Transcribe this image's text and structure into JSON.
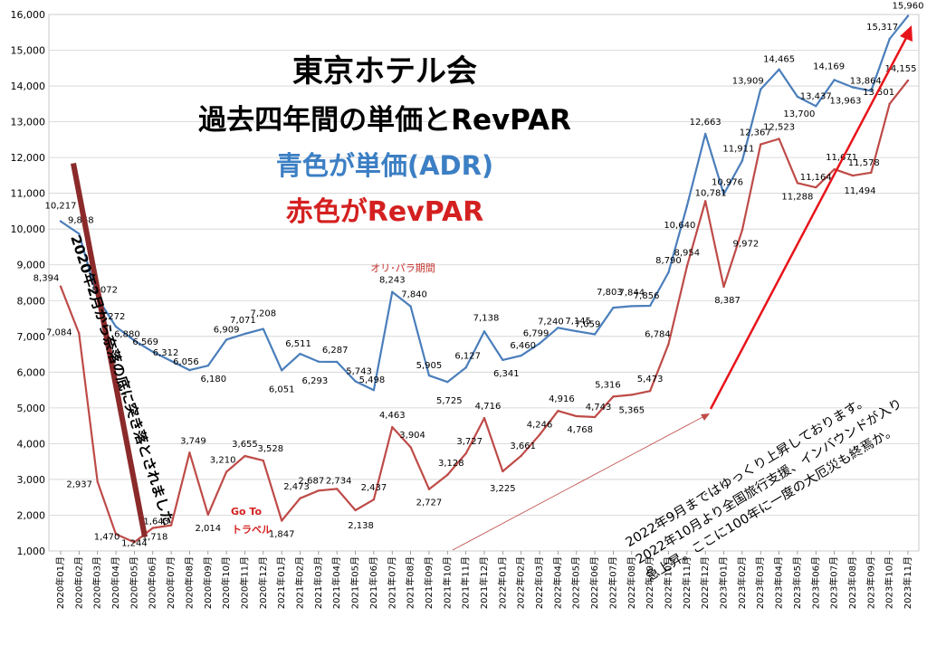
{
  "chart_data": {
    "type": "line",
    "title_lines": [
      "東京ホテル会",
      "過去四年間の単価とRevPAR",
      "青色が単価(ADR)",
      "赤色がRevPAR"
    ],
    "ylim": [
      1000,
      16000
    ],
    "y_ticks": [
      "1,000",
      "2,000",
      "3,000",
      "4,000",
      "5,000",
      "6,000",
      "7,000",
      "8,000",
      "9,000",
      "10,000",
      "11,000",
      "12,000",
      "13,000",
      "14,000",
      "15,000",
      "16,000"
    ],
    "categories": [
      "2020年01月",
      "2020年02月",
      "2020年03月",
      "2020年04月",
      "2020年05月",
      "2020年06月",
      "2020年07月",
      "2020年08月",
      "2020年09月",
      "2020年10月",
      "2020年11月",
      "2020年12月",
      "2021年01月",
      "2021年02月",
      "2021年03月",
      "2021年04月",
      "2021年05月",
      "2021年06月",
      "2021年07月",
      "2021年08月",
      "2021年09月",
      "2021年10月",
      "2021年11月",
      "2021年12月",
      "2022年01月",
      "2022年02月",
      "2022年03月",
      "2022年04月",
      "2022年05月",
      "2022年06月",
      "2022年07月",
      "2022年08月",
      "2022年09月",
      "2022年10月",
      "2022年11月",
      "2022年12月",
      "2023年01月",
      "2023年02月",
      "2023年03月",
      "2023年04月",
      "2023年05月",
      "2023年06月",
      "2023年07月",
      "2023年08月",
      "2023年09月",
      "2023年10月",
      "2023年11月"
    ],
    "series": [
      {
        "name": "ADR",
        "color": "#4a7ebb",
        "values": [
          10217,
          9868,
          8072,
          7272,
          6880,
          6569,
          6312,
          6056,
          6180,
          6909,
          7071,
          7208,
          6051,
          6511,
          6293,
          6287,
          5743,
          5498,
          8243,
          7840,
          5905,
          5725,
          6127,
          7138,
          6341,
          6460,
          6799,
          7240,
          7145,
          7059,
          7803,
          7844,
          7856,
          8790,
          10640,
          12663,
          10976,
          11911,
          13909,
          14465,
          13700,
          13437,
          14169,
          13963,
          13864,
          15317,
          15960
        ],
        "labels": [
          "10,217",
          "9,868",
          "8,072",
          "7,272",
          "6,880",
          "6,569",
          "6,312",
          "6,056",
          "6,180",
          "6,909",
          "7,071",
          "7,208",
          "6,051",
          "6,511",
          "6,293",
          "6,287",
          "5,743",
          "5,498",
          "8,243",
          "7,840",
          "5,905",
          "5,725",
          "6,127",
          "7,138",
          "6,341",
          "6,460",
          "6,799",
          "7,240",
          "7,145",
          "7,059",
          "7,803",
          "7,844",
          "7,856",
          "8,790",
          "10,640",
          "12,663",
          "10,976",
          "11,911",
          "13,909",
          "14,465",
          "13,700",
          "13,437",
          "14,169",
          "13,963",
          "13,864",
          "15,317",
          "15,960"
        ]
      },
      {
        "name": "RevPAR",
        "color": "#be4b48",
        "values": [
          8394,
          7084,
          2937,
          1470,
          1244,
          1643,
          1718,
          3749,
          2014,
          3210,
          3655,
          3528,
          1847,
          2473,
          2687,
          2734,
          2138,
          2437,
          4463,
          3904,
          2727,
          3128,
          3727,
          4716,
          3225,
          3661,
          4246,
          4916,
          4768,
          4743,
          5316,
          5365,
          5473,
          6784,
          8954,
          10781,
          8387,
          9972,
          12367,
          12523,
          11288,
          11164,
          11671,
          11494,
          11578,
          13501,
          14155
        ],
        "labels": [
          "8,394",
          "7,084",
          "2,937",
          "1,470",
          "1,244",
          "1,643",
          "1,718",
          "3,749",
          "2,014",
          "3,210",
          "3,655",
          "3,528",
          "1,847",
          "2,473",
          "2,687",
          "2,734",
          "2,138",
          "2,437",
          "4,463",
          "3,904",
          "2,727",
          "3,128",
          "3,727",
          "4,716",
          "3,225",
          "3,661",
          "4,246",
          "4,916",
          "4,768",
          "4,743",
          "5,316",
          "5,365",
          "5,473",
          "6,784",
          "8,954",
          "10,781",
          "8,387",
          "9,972",
          "12,367",
          "12,523",
          "11,288",
          "11,164",
          "11,671",
          "11,494",
          "11,578",
          "13,501",
          "14,155"
        ]
      }
    ],
    "annotations": {
      "olympics": "オリ･パラ期間",
      "goto_line1": "Go To",
      "goto_line2": "トラベル",
      "crash": "2020年2月から奈落の底に突き落とされました",
      "recovery_lines": [
        "2022年9月まではゆっくり上昇しております。",
        "2022年10月より全国旅行支援、インバウンドが入り",
        "急上昇。ここに100年に一度の大厄災も終焉か。"
      ]
    },
    "colors": {
      "adr": "#4a7ebb",
      "revpar": "#be4b48",
      "arrow": "#e8141b",
      "title_black": "#000000",
      "title_blue": "#3c7fc4",
      "title_red": "#d42020",
      "crash_bar": "#8b2a2a"
    },
    "grid": true
  }
}
